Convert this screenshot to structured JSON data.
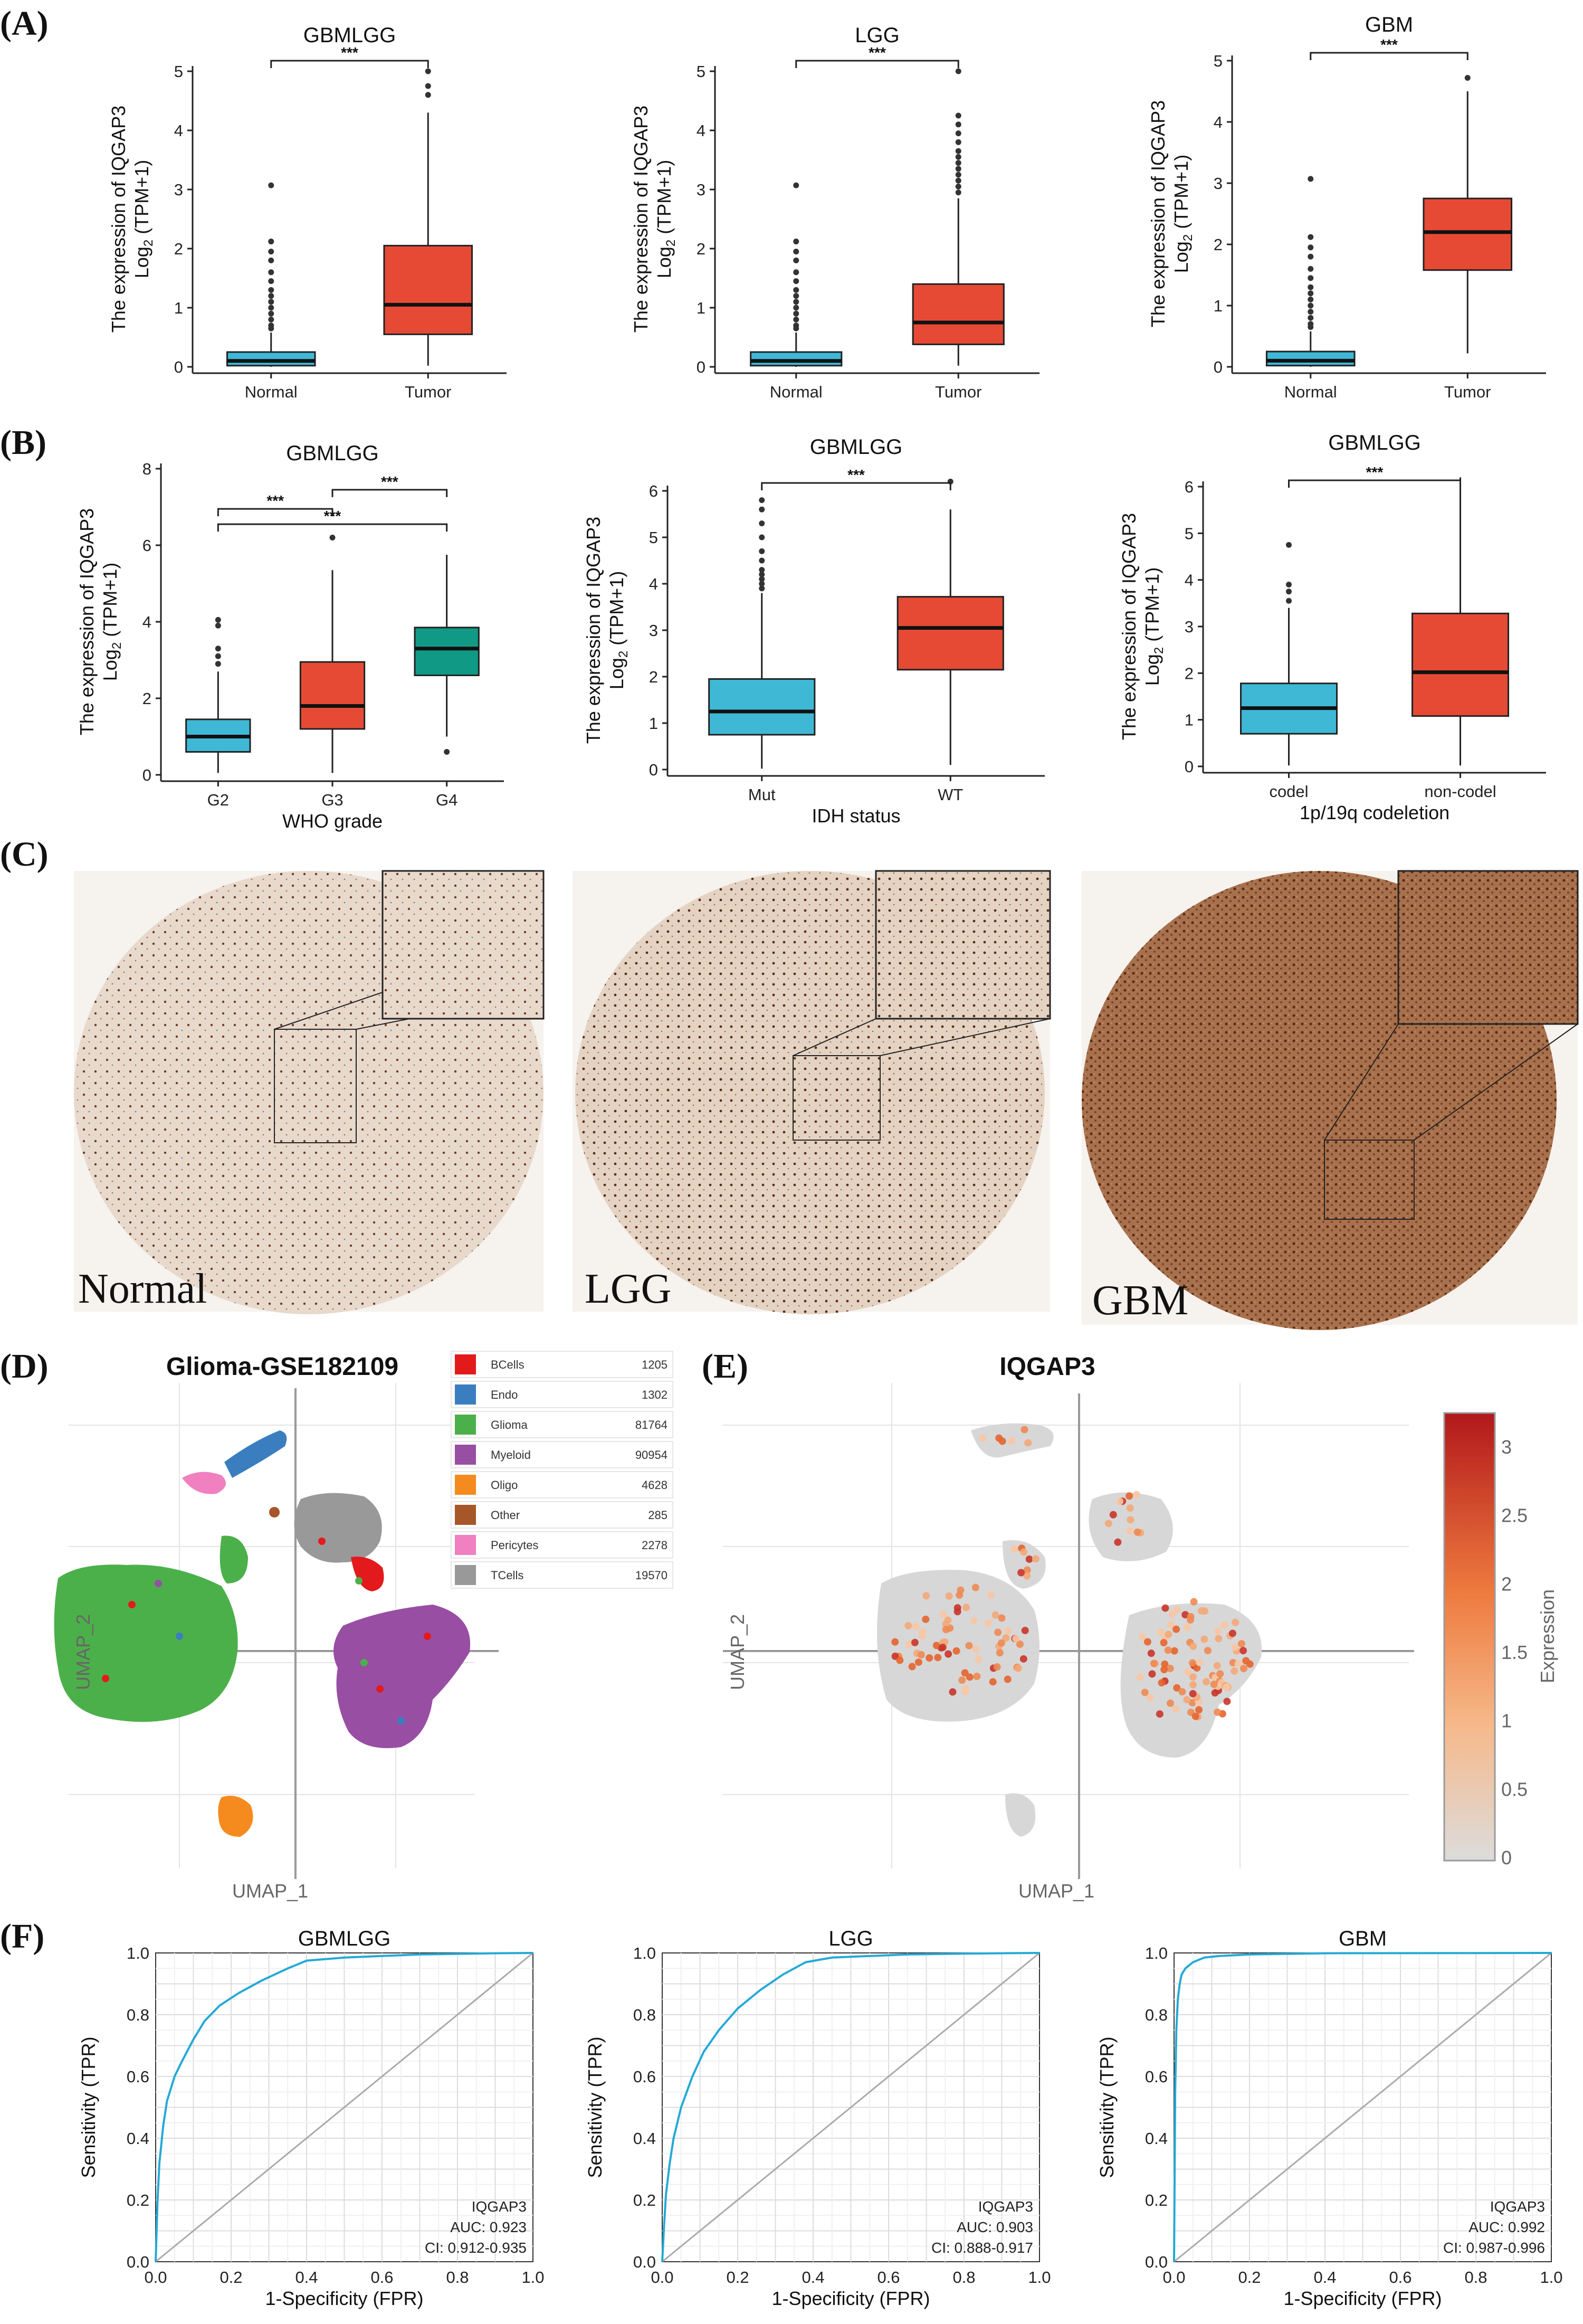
{
  "panels": {
    "A": "(A)",
    "B": "(B)",
    "C": "(C)",
    "D": "(D)",
    "E": "(E)",
    "F": "(F)"
  },
  "colors": {
    "normal": "#3fb8d6",
    "tumor": "#e64a35",
    "g4": "#109a85",
    "roc": "#24a9d6"
  },
  "ylabel_line1": "The expression of IQGAP3",
  "ylabel_line2": "Log",
  "ylabel_sub": "2",
  "ylabel_tail": " (TPM+1)",
  "chart_data": [
    {
      "id": "A1",
      "type": "box",
      "title": "GBMLGG",
      "categories": [
        "Normal",
        "Tumor"
      ],
      "ylim": [
        0,
        5
      ],
      "yticks": [
        0,
        1,
        2,
        3,
        4,
        5
      ],
      "boxes": [
        {
          "q1": 0.02,
          "median": 0.1,
          "q3": 0.25,
          "wlo": 0,
          "whi": 0.58
        },
        {
          "q1": 0.55,
          "median": 1.05,
          "q3": 2.05,
          "wlo": 0.02,
          "whi": 4.3
        }
      ],
      "outliers": [
        [
          3.07,
          2.12,
          1.95,
          1.8,
          1.6,
          1.45,
          1.3,
          1.2,
          1.1,
          1.0,
          0.9,
          0.8,
          0.7,
          0.65
        ],
        [
          4.6,
          4.75,
          5.0
        ]
      ],
      "sig": [
        {
          "from": 0,
          "to": 1,
          "label": "***"
        }
      ],
      "xlabel": ""
    },
    {
      "id": "A2",
      "type": "box",
      "title": "LGG",
      "categories": [
        "Normal",
        "Tumor"
      ],
      "ylim": [
        0,
        5
      ],
      "yticks": [
        0,
        1,
        2,
        3,
        4,
        5
      ],
      "boxes": [
        {
          "q1": 0.02,
          "median": 0.1,
          "q3": 0.25,
          "wlo": 0,
          "whi": 0.58
        },
        {
          "q1": 0.38,
          "median": 0.75,
          "q3": 1.4,
          "wlo": 0.02,
          "whi": 2.85
        }
      ],
      "outliers": [
        [
          3.07,
          2.12,
          1.95,
          1.8,
          1.6,
          1.45,
          1.3,
          1.2,
          1.1,
          1.0,
          0.9,
          0.8,
          0.7,
          0.65
        ],
        [
          2.95,
          3.05,
          3.15,
          3.25,
          3.35,
          3.45,
          3.55,
          3.65,
          3.8,
          3.95,
          4.1,
          4.25,
          5.0
        ]
      ],
      "sig": [
        {
          "from": 0,
          "to": 1,
          "label": "***"
        }
      ],
      "xlabel": ""
    },
    {
      "id": "A3",
      "type": "box",
      "title": "GBM",
      "categories": [
        "Normal",
        "Tumor"
      ],
      "ylim": [
        0,
        5
      ],
      "yticks": [
        0,
        1,
        2,
        3,
        4,
        5
      ],
      "boxes": [
        {
          "q1": 0.02,
          "median": 0.1,
          "q3": 0.25,
          "wlo": 0,
          "whi": 0.58
        },
        {
          "q1": 1.58,
          "median": 2.2,
          "q3": 2.75,
          "wlo": 0.22,
          "whi": 4.5
        }
      ],
      "outliers": [
        [
          3.07,
          2.12,
          1.95,
          1.8,
          1.6,
          1.45,
          1.3,
          1.2,
          1.1,
          1.0,
          0.9,
          0.8,
          0.7,
          0.65
        ],
        [
          4.72
        ]
      ],
      "sig": [
        {
          "from": 0,
          "to": 1,
          "label": "***"
        }
      ],
      "xlabel": ""
    },
    {
      "id": "B1",
      "type": "box",
      "title": "GBMLGG",
      "categories": [
        "G2",
        "G3",
        "G4"
      ],
      "ylim": [
        0,
        8
      ],
      "yticks": [
        0,
        2,
        4,
        6,
        8
      ],
      "boxes": [
        {
          "q1": 0.6,
          "median": 1.0,
          "q3": 1.45,
          "wlo": 0.05,
          "whi": 2.7
        },
        {
          "q1": 1.2,
          "median": 1.8,
          "q3": 2.95,
          "wlo": 0.05,
          "whi": 5.35
        },
        {
          "q1": 2.6,
          "median": 3.3,
          "q3": 3.85,
          "wlo": 1.0,
          "whi": 5.75
        }
      ],
      "outliers": [
        [
          2.9,
          3.1,
          3.3,
          3.9,
          4.05
        ],
        [
          6.2
        ],
        [
          0.6
        ]
      ],
      "sig": [
        {
          "from": 0,
          "to": 1,
          "label": "***"
        },
        {
          "from": 0,
          "to": 2,
          "label": "***"
        },
        {
          "from": 1,
          "to": 2,
          "label": "***"
        }
      ],
      "xlabel": "WHO grade"
    },
    {
      "id": "B2",
      "type": "box",
      "title": "GBMLGG",
      "categories": [
        "Mut",
        "WT"
      ],
      "ylim": [
        0,
        6
      ],
      "yticks": [
        0,
        1,
        2,
        3,
        4,
        5,
        6
      ],
      "boxes": [
        {
          "q1": 0.75,
          "median": 1.25,
          "q3": 1.95,
          "wlo": 0.02,
          "whi": 3.8
        },
        {
          "q1": 2.15,
          "median": 3.05,
          "q3": 3.72,
          "wlo": 0.1,
          "whi": 5.6
        }
      ],
      "outliers": [
        [
          3.9,
          4.0,
          4.1,
          4.2,
          4.3,
          4.5,
          4.7,
          5.0,
          5.3,
          5.6,
          5.8
        ],
        [
          6.2
        ]
      ],
      "sig": [
        {
          "from": 0,
          "to": 1,
          "label": "***"
        }
      ],
      "xlabel": "IDH status"
    },
    {
      "id": "B3",
      "type": "box",
      "title": "GBMLGG",
      "categories": [
        "codel",
        "non-codel"
      ],
      "ylim": [
        0,
        6
      ],
      "yticks": [
        0,
        1,
        2,
        3,
        4,
        5,
        6
      ],
      "boxes": [
        {
          "q1": 0.7,
          "median": 1.25,
          "q3": 1.78,
          "wlo": 0.02,
          "whi": 3.4
        },
        {
          "q1": 1.08,
          "median": 2.02,
          "q3": 3.28,
          "wlo": 0.02,
          "whi": 6.2
        }
      ],
      "outliers": [
        [
          3.55,
          3.75,
          3.9,
          4.75
        ],
        []
      ],
      "sig": [
        {
          "from": 0,
          "to": 1,
          "label": "***"
        }
      ],
      "xlabel": "1p/19q codeletion"
    },
    {
      "id": "D",
      "type": "scatter",
      "title": "Glioma-GSE182109",
      "xlabel": "UMAP_1",
      "ylabel": "UMAP_2",
      "legend": [
        {
          "name": "BCells",
          "count": "1205",
          "color": "#e31a1c"
        },
        {
          "name": "Endo",
          "count": "1302",
          "color": "#3a7ebf"
        },
        {
          "name": "Glioma",
          "count": "81764",
          "color": "#4cb04a"
        },
        {
          "name": "Myeloid",
          "count": "90954",
          "color": "#984ea3"
        },
        {
          "name": "Oligo",
          "count": "4628",
          "color": "#f58a1f"
        },
        {
          "name": "Other",
          "count": "285",
          "color": "#a65628"
        },
        {
          "name": "Pericytes",
          "count": "2278",
          "color": "#f080bf"
        },
        {
          "name": "TCells",
          "count": "19570",
          "color": "#999999"
        }
      ]
    },
    {
      "id": "E",
      "type": "scatter",
      "title": "IQGAP3",
      "xlabel": "UMAP_1",
      "ylabel": "UMAP_2",
      "colorbar_label": "Expression",
      "colorbar_ticks": [
        "0",
        "0.5",
        "1",
        "1.5",
        "2",
        "2.5",
        "3"
      ]
    },
    {
      "id": "F1",
      "type": "line",
      "title": "GBMLGG",
      "xlabel": "1-Specificity (FPR)",
      "ylabel": "Sensitivity (TPR)",
      "xlim": [
        0,
        1
      ],
      "ylim": [
        0,
        1
      ],
      "ticks": [
        "0.0",
        "0.2",
        "0.4",
        "0.6",
        "0.8",
        "1.0"
      ],
      "x": [
        0,
        0.005,
        0.01,
        0.02,
        0.03,
        0.05,
        0.07,
        0.1,
        0.13,
        0.17,
        0.22,
        0.28,
        0.35,
        0.4,
        0.5,
        0.6,
        0.7,
        0.8,
        0.9,
        1.0
      ],
      "y": [
        0,
        0.2,
        0.32,
        0.44,
        0.52,
        0.6,
        0.65,
        0.72,
        0.78,
        0.83,
        0.87,
        0.91,
        0.95,
        0.975,
        0.985,
        0.99,
        0.995,
        0.997,
        0.999,
        1.0
      ],
      "note_name": "IQGAP3",
      "note_auc": "AUC: 0.923",
      "note_ci": "CI: 0.912-0.935"
    },
    {
      "id": "F2",
      "type": "line",
      "title": "LGG",
      "xlabel": "1-Specificity (FPR)",
      "ylabel": "Sensitivity (TPR)",
      "xlim": [
        0,
        1
      ],
      "ylim": [
        0,
        1
      ],
      "ticks": [
        "0.0",
        "0.2",
        "0.4",
        "0.6",
        "0.8",
        "1.0"
      ],
      "x": [
        0,
        0.005,
        0.01,
        0.02,
        0.03,
        0.05,
        0.08,
        0.11,
        0.15,
        0.2,
        0.26,
        0.32,
        0.38,
        0.45,
        0.55,
        0.65,
        0.8,
        0.9,
        1.0
      ],
      "y": [
        0,
        0.12,
        0.22,
        0.32,
        0.4,
        0.5,
        0.6,
        0.68,
        0.75,
        0.82,
        0.88,
        0.93,
        0.97,
        0.985,
        0.99,
        0.995,
        0.998,
        0.999,
        1.0
      ],
      "note_name": "IQGAP3",
      "note_auc": "AUC: 0.903",
      "note_ci": "CI: 0.888-0.917"
    },
    {
      "id": "F3",
      "type": "line",
      "title": "GBM",
      "xlabel": "1-Specificity (FPR)",
      "ylabel": "Sensitivity (TPR)",
      "xlim": [
        0,
        1
      ],
      "ylim": [
        0,
        1
      ],
      "ticks": [
        "0.0",
        "0.2",
        "0.4",
        "0.6",
        "0.8",
        "1.0"
      ],
      "x": [
        0,
        0.003,
        0.006,
        0.01,
        0.015,
        0.02,
        0.03,
        0.05,
        0.08,
        0.12,
        0.2,
        0.4,
        1.0
      ],
      "y": [
        0,
        0.55,
        0.75,
        0.85,
        0.9,
        0.93,
        0.95,
        0.97,
        0.985,
        0.99,
        0.995,
        0.999,
        1.0
      ],
      "note_name": "IQGAP3",
      "note_auc": "AUC: 0.992",
      "note_ci": "CI: 0.987-0.996"
    }
  ],
  "ihc": {
    "labels": [
      "Normal",
      "LGG",
      "GBM"
    ]
  }
}
